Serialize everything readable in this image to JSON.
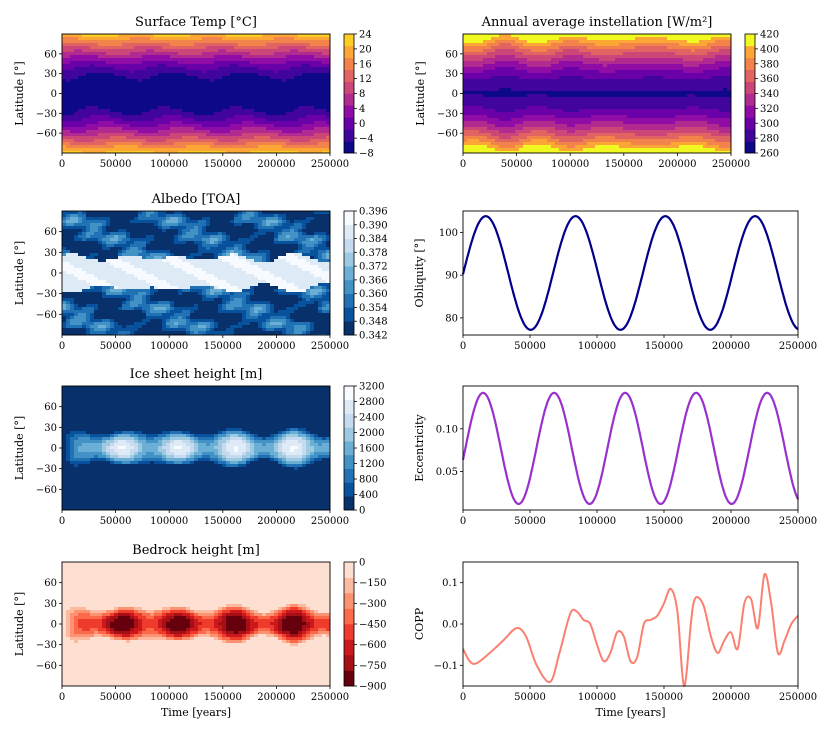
{
  "figure": {
    "xlabel": "Time [years]",
    "y_latitude_label": "Latitude [°]"
  },
  "chart_data": [
    {
      "id": "surface_temp",
      "type": "heatmap",
      "title": "Surface Temp [°C]",
      "ylabel": "Latitude [°]",
      "xlabel": "",
      "x_ticks": [
        "0",
        "50000",
        "100000",
        "150000",
        "200000",
        "250000"
      ],
      "y_ticks": [
        "60",
        "30",
        "0",
        "−30",
        "−60"
      ],
      "xlim": [
        0,
        250000
      ],
      "ylim": [
        -90,
        90
      ],
      "colorbar_ticks": [
        "24",
        "20",
        "16",
        "12",
        "8",
        "4",
        "0",
        "−4",
        "−8"
      ],
      "colorbar_range": [
        -8,
        24
      ],
      "colors": [
        "#0d0887",
        "#41049d",
        "#6a00a8",
        "#8f0da4",
        "#b12a90",
        "#cc4778",
        "#e16462",
        "#f2844b",
        "#fca636",
        "#fcce25"
      ]
    },
    {
      "id": "instellation",
      "type": "heatmap",
      "title": "Annual average instellation [W/m²]",
      "ylabel": "Latitude [°]",
      "xlabel": "",
      "x_ticks": [
        "0",
        "50000",
        "100000",
        "150000",
        "200000",
        "250000"
      ],
      "y_ticks": [
        "60",
        "30",
        "0",
        "−30",
        "−60"
      ],
      "xlim": [
        0,
        250000
      ],
      "ylim": [
        -90,
        90
      ],
      "colorbar_ticks": [
        "420",
        "400",
        "380",
        "360",
        "340",
        "320",
        "300",
        "280",
        "260"
      ],
      "colorbar_range": [
        260,
        420
      ],
      "colors": [
        "#0d0887",
        "#41049d",
        "#6a00a8",
        "#8f0da4",
        "#b12a90",
        "#cc4778",
        "#e16462",
        "#f2844b",
        "#fca636",
        "#f0f921"
      ]
    },
    {
      "id": "albedo",
      "type": "heatmap",
      "title": "Albedo [TOA]",
      "ylabel": "Latitude [°]",
      "xlabel": "",
      "x_ticks": [
        "0",
        "50000",
        "100000",
        "150000",
        "200000",
        "250000"
      ],
      "y_ticks": [
        "60",
        "30",
        "0",
        "−30",
        "−60"
      ],
      "xlim": [
        0,
        250000
      ],
      "ylim": [
        -90,
        90
      ],
      "colorbar_ticks": [
        "0.396",
        "0.390",
        "0.384",
        "0.378",
        "0.372",
        "0.366",
        "0.360",
        "0.354",
        "0.348",
        "0.342"
      ],
      "colorbar_range": [
        0.342,
        0.396
      ],
      "colors": [
        "#08306b",
        "#08519c",
        "#2171b5",
        "#4292c6",
        "#6baed6",
        "#9ecae1",
        "#c6dbef",
        "#deebf7",
        "#f7fbff"
      ]
    },
    {
      "id": "obliquity",
      "type": "line",
      "title": "",
      "ylabel": "Obliquity [°]",
      "xlabel": "",
      "x_ticks": [
        "0",
        "50000",
        "100000",
        "150000",
        "200000",
        "250000"
      ],
      "xlim": [
        0,
        250000
      ],
      "ylim": [
        76,
        105
      ],
      "y_ticks": [
        80,
        90,
        100
      ],
      "series": [
        {
          "name": "Obliquity",
          "color": "#00008b",
          "period": 67000,
          "mean": 90.5,
          "amp": 13.3,
          "phase_x": 17000
        }
      ]
    },
    {
      "id": "ice_height",
      "type": "heatmap",
      "title": "Ice sheet height [m]",
      "ylabel": "Latitude [°]",
      "xlabel": "",
      "x_ticks": [
        "0",
        "50000",
        "100000",
        "150000",
        "200000",
        "250000"
      ],
      "y_ticks": [
        "60",
        "30",
        "0",
        "−30",
        "−60"
      ],
      "xlim": [
        0,
        250000
      ],
      "ylim": [
        -90,
        90
      ],
      "colorbar_ticks": [
        "3200",
        "2800",
        "2400",
        "2000",
        "1600",
        "1200",
        "800",
        "400",
        "0"
      ],
      "colorbar_range": [
        0,
        3200
      ],
      "colors": [
        "#08306b",
        "#08519c",
        "#2171b5",
        "#4292c6",
        "#6baed6",
        "#9ecae1",
        "#c6dbef",
        "#deebf7",
        "#f7fbff"
      ]
    },
    {
      "id": "eccentricity",
      "type": "line",
      "title": "",
      "ylabel": "Eccentricity",
      "xlabel": "",
      "x_ticks": [
        "0",
        "50000",
        "100000",
        "150000",
        "200000",
        "250000"
      ],
      "xlim": [
        0,
        250000
      ],
      "ylim": [
        0.005,
        0.15
      ],
      "y_ticks": [
        0.05,
        0.1
      ],
      "y_tick_labels": [
        "0.05",
        "0.10"
      ],
      "series": [
        {
          "name": "Eccentricity",
          "color": "#9932cc",
          "period": 53000,
          "mean": 0.077,
          "amp": 0.065,
          "phase_x": 15000
        }
      ]
    },
    {
      "id": "bedrock_height",
      "type": "heatmap",
      "title": "Bedrock height [m]",
      "ylabel": "Latitude [°]",
      "xlabel": "Time [years]",
      "x_ticks": [
        "0",
        "50000",
        "100000",
        "150000",
        "200000",
        "250000"
      ],
      "y_ticks": [
        "60",
        "30",
        "0",
        "−30",
        "−60"
      ],
      "xlim": [
        0,
        250000
      ],
      "ylim": [
        -90,
        90
      ],
      "colorbar_ticks": [
        "0",
        "−150",
        "−300",
        "−450",
        "−600",
        "−750",
        "−900"
      ],
      "colorbar_range": [
        -900,
        0
      ],
      "colors": [
        "#67000d",
        "#a50f15",
        "#cb181d",
        "#ef3b2c",
        "#fb6a4a",
        "#fc9272",
        "#fcbba1",
        "#fee0d2"
      ]
    },
    {
      "id": "copp",
      "type": "line",
      "title": "",
      "ylabel": "COPP",
      "xlabel": "Time [years]",
      "x_ticks": [
        "0",
        "50000",
        "100000",
        "150000",
        "200000",
        "250000"
      ],
      "xlim": [
        0,
        250000
      ],
      "ylim": [
        -0.15,
        0.15
      ],
      "y_ticks": [
        -0.1,
        0.0,
        0.1
      ],
      "y_tick_labels": [
        "−0.1",
        "0.0",
        "0.1"
      ],
      "series": [
        {
          "name": "COPP",
          "color": "#fa8072",
          "x": [
            0,
            5000,
            10000,
            20000,
            30000,
            40000,
            47000,
            55000,
            65000,
            72000,
            80000,
            85000,
            90000,
            95000,
            100000,
            105000,
            110000,
            115000,
            120000,
            125000,
            130000,
            135000,
            140000,
            145000,
            150000,
            155000,
            160000,
            165000,
            170000,
            172000,
            175000,
            180000,
            185000,
            190000,
            195000,
            200000,
            205000,
            210000,
            215000,
            220000,
            225000,
            230000,
            235000,
            240000,
            245000,
            250000
          ],
          "y": [
            -0.06,
            -0.09,
            -0.095,
            -0.07,
            -0.04,
            -0.01,
            -0.03,
            -0.1,
            -0.14,
            -0.07,
            0.025,
            0.03,
            0.01,
            0.0,
            -0.05,
            -0.09,
            -0.07,
            -0.02,
            -0.03,
            -0.09,
            -0.08,
            0.0,
            0.01,
            0.02,
            0.05,
            0.085,
            0.03,
            -0.15,
            0.0,
            0.05,
            0.065,
            0.04,
            -0.03,
            -0.07,
            -0.04,
            -0.02,
            -0.06,
            0.05,
            0.06,
            -0.01,
            0.12,
            0.05,
            -0.07,
            -0.04,
            0.0,
            0.02
          ]
        }
      ]
    }
  ]
}
